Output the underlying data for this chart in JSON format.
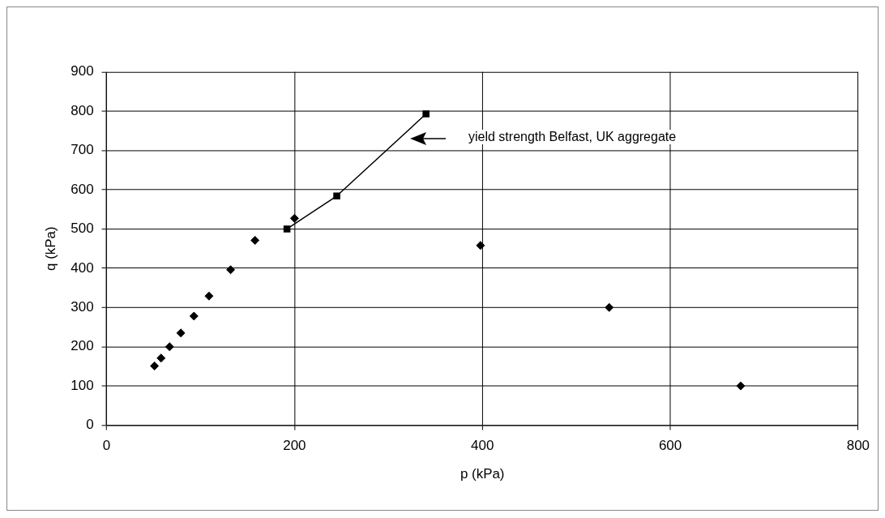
{
  "chart_data": {
    "type": "scatter",
    "xlabel": "p (kPa)",
    "ylabel": "q (kPa)",
    "xlim": [
      0,
      800
    ],
    "xticks": [
      0,
      200,
      400,
      600,
      800
    ],
    "ylim": [
      0,
      900
    ],
    "yticks": [
      0,
      100,
      200,
      300,
      400,
      500,
      600,
      700,
      800,
      900
    ],
    "grid": true,
    "legend": false,
    "annotations": [
      "yield strength Belfast, UK aggregate"
    ],
    "series": [
      {
        "marker": "diamond",
        "color": "#000000",
        "x": [
          51,
          58,
          67,
          79,
          93,
          109,
          132,
          158,
          200,
          398,
          535,
          675
        ],
        "values": [
          151,
          171,
          200,
          235,
          278,
          329,
          396,
          471,
          527,
          458,
          300,
          100
        ]
      },
      {
        "type": "line",
        "marker": "square",
        "color": "#000000",
        "x": [
          192,
          245,
          340
        ],
        "values": [
          500,
          584,
          793
        ]
      }
    ]
  }
}
